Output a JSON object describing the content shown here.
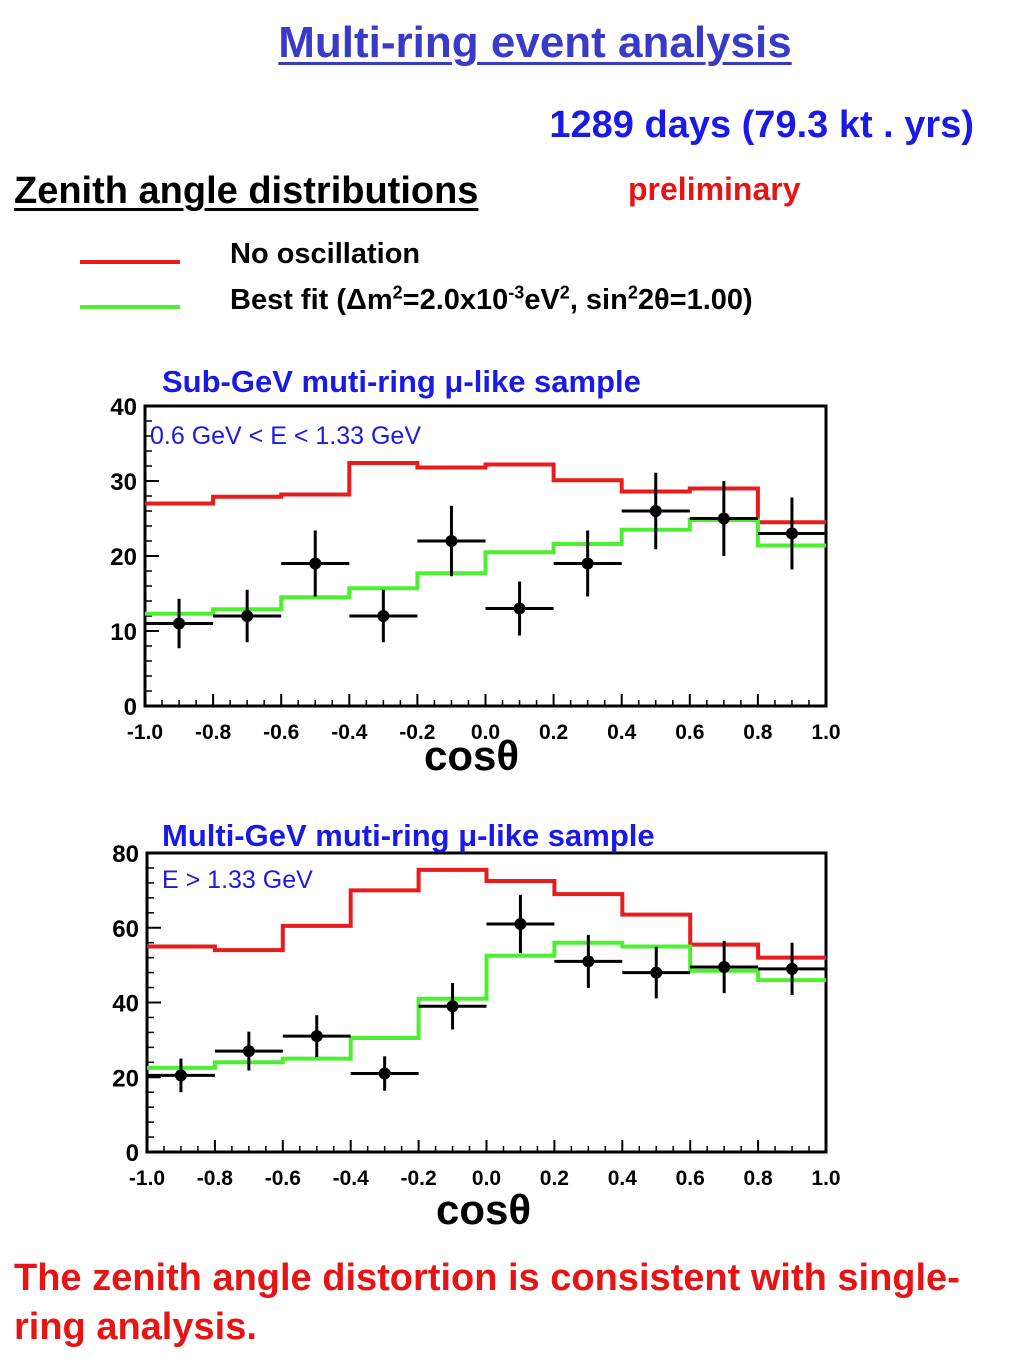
{
  "header": {
    "title": "Multi-ring event analysis",
    "exposure": "1289 days (79.3 kt . yrs)",
    "section": "Zenith angle distributions",
    "status": "preliminary"
  },
  "legend": {
    "no_osc": {
      "label": "No oscillation",
      "color": "#e81c1c"
    },
    "best_fit": {
      "color": "#4cf030",
      "p1": "Best fit (",
      "delta": "Δ",
      "p2": "m",
      "s1": "2",
      "p3": "=2.0x10",
      "s2": "-3",
      "p4": "eV",
      "s3": "2",
      "p5": ", sin",
      "s4": "2",
      "p6": "2",
      "theta": "θ",
      "p7": "=1.00)"
    }
  },
  "colors": {
    "blue_text": "#1a1ae6",
    "red_text": "#e61414",
    "title_blue": "#3a3ac8",
    "data": "#000000"
  },
  "plots": [
    {
      "title": "Sub-GeV muti-ring μ-like sample",
      "range": "0.6 GeV < E < 1.33 GeV",
      "xaxis": "cosθ"
    },
    {
      "title": "Multi-GeV   muti-ring μ-like sample",
      "range": "E > 1.33 GeV",
      "xaxis": "cosθ"
    }
  ],
  "conclusion": "The zenith angle distortion is consistent with single-ring analysis.",
  "chart_data": [
    {
      "type": "line",
      "title": "Sub-GeV muti-ring μ-like sample",
      "subtitle": "0.6 GeV < E < 1.33 GeV",
      "xlabel": "cosθ",
      "xlim": [
        -1.0,
        1.0
      ],
      "ylim": [
        0,
        40
      ],
      "xticks": [
        "-1.0",
        "-0.8",
        "-0.6",
        "-0.4",
        "-0.2",
        "0.0",
        "0.2",
        "0.4",
        "0.6",
        "0.8",
        "1.0"
      ],
      "yticks": [
        "0",
        "10",
        "20",
        "30",
        "40"
      ],
      "bin_edges": [
        -1.0,
        -0.8,
        -0.6,
        -0.4,
        -0.2,
        0.0,
        0.2,
        0.4,
        0.6,
        0.8,
        1.0
      ],
      "series": [
        {
          "name": "No oscillation",
          "style": "histogram",
          "color": "#e81c1c",
          "values": [
            27,
            27.9,
            28.2,
            32.4,
            31.8,
            32.2,
            30.1,
            28.6,
            29,
            24.5
          ]
        },
        {
          "name": "Best fit (Δm²=2.0x10⁻³eV², sin²2θ=1.00)",
          "style": "histogram",
          "color": "#4cf030",
          "values": [
            12.3,
            12.9,
            14.5,
            15.7,
            17.7,
            20.5,
            21.6,
            23.5,
            24.8,
            21.4
          ]
        },
        {
          "style": "points",
          "color": "#000000",
          "x": [
            -0.9,
            -0.7,
            -0.5,
            -0.3,
            -0.1,
            0.1,
            0.3,
            0.5,
            0.7,
            0.9
          ],
          "y": [
            11,
            12,
            19,
            12,
            22,
            13,
            19,
            26,
            25,
            23
          ],
          "yerr": [
            3.3,
            3.5,
            4.4,
            3.5,
            4.7,
            3.6,
            4.4,
            5.1,
            5.0,
            4.8
          ]
        }
      ]
    },
    {
      "type": "line",
      "title": "Multi-GeV   muti-ring μ-like sample",
      "subtitle": "E > 1.33 GeV",
      "xlabel": "cosθ",
      "xlim": [
        -1.0,
        1.0
      ],
      "ylim": [
        0,
        80
      ],
      "xticks": [
        "-1.0",
        "-0.8",
        "-0.6",
        "-0.4",
        "-0.2",
        "0.0",
        "0.2",
        "0.4",
        "0.6",
        "0.8",
        "1.0"
      ],
      "yticks": [
        "0",
        "20",
        "40",
        "60",
        "80"
      ],
      "bin_edges": [
        -1.0,
        -0.8,
        -0.6,
        -0.4,
        -0.2,
        0.0,
        0.2,
        0.4,
        0.6,
        0.8,
        1.0
      ],
      "series": [
        {
          "name": "No oscillation",
          "style": "histogram",
          "color": "#e81c1c",
          "values": [
            55,
            54,
            60.5,
            70,
            75.5,
            72.5,
            69,
            63.5,
            55.5,
            52
          ]
        },
        {
          "name": "Best fit (Δm²=2.0x10⁻³eV², sin²2θ=1.00)",
          "style": "histogram",
          "color": "#4cf030",
          "values": [
            22.5,
            24,
            25,
            30.5,
            41,
            52.5,
            56,
            55,
            48.5,
            46
          ]
        },
        {
          "style": "points",
          "color": "#000000",
          "x": [
            -0.9,
            -0.7,
            -0.5,
            -0.3,
            -0.1,
            0.1,
            0.3,
            0.5,
            0.7,
            0.9
          ],
          "y": [
            20.5,
            27,
            31,
            21,
            39,
            61,
            51,
            48,
            49.5,
            49
          ],
          "yerr": [
            4.5,
            5.2,
            5.6,
            4.6,
            6.2,
            7.8,
            7.1,
            6.9,
            7.0,
            7.0
          ]
        }
      ]
    }
  ]
}
